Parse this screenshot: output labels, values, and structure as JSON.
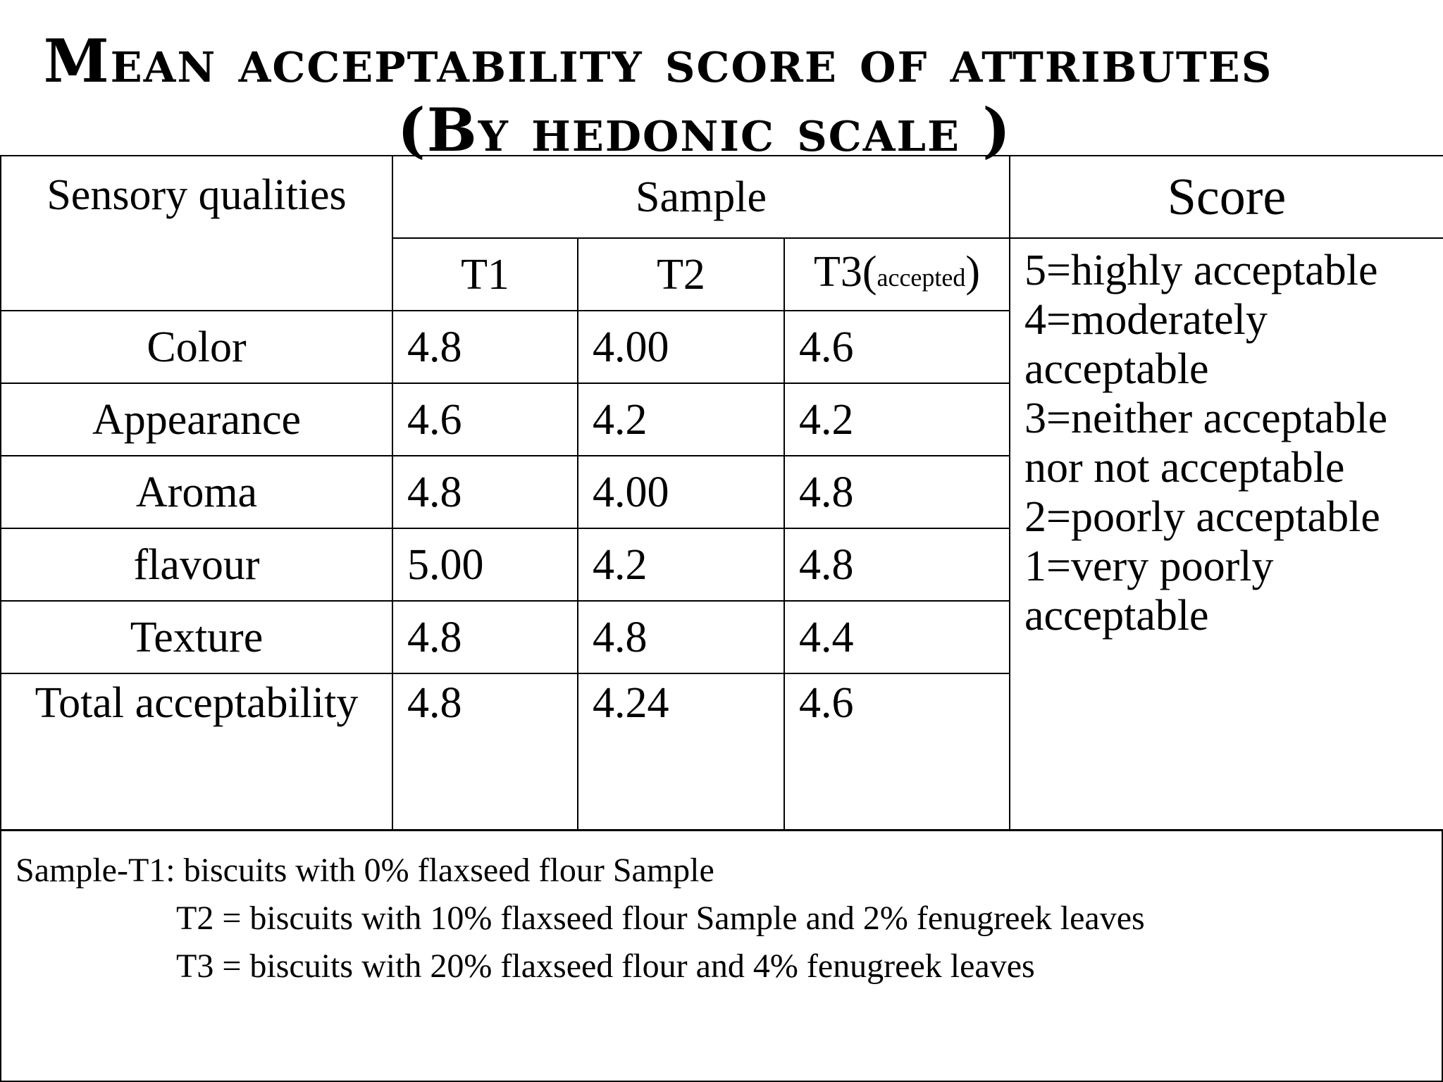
{
  "title": {
    "line1": "Mean acceptability score of attributes",
    "line2": "(By hedonic scale )"
  },
  "table": {
    "header": {
      "sensory_qualities": "Sensory qualities",
      "sample": "Sample",
      "score": "Score"
    },
    "samples": {
      "t1": "T1",
      "t2": "T2",
      "t3": "T3(",
      "t3_note": "accepted",
      "t3_close": ")"
    },
    "rows": [
      {
        "quality": "Color",
        "t1": "4.8",
        "t2": "4.00",
        "t3": "4.6"
      },
      {
        "quality": "Appearance",
        "t1": "4.6",
        "t2": "4.2",
        "t3": "4.2"
      },
      {
        "quality": "Aroma",
        "t1": "4.8",
        "t2": "4.00",
        "t3": "4.8"
      },
      {
        "quality": "flavour",
        "t1": "5.00",
        "t2": "4.2",
        "t3": "4.8"
      },
      {
        "quality": "Texture",
        "t1": "4.8",
        "t2": "4.8",
        "t3": "4.4"
      },
      {
        "quality": "Total acceptability",
        "t1": "4.8",
        "t2": "4.24",
        "t3": "4.6"
      }
    ],
    "score_legend": [
      "5=highly acceptable",
      "4=moderately",
      "acceptable",
      "3=neither acceptable",
      "nor not acceptable",
      "2=poorly acceptable",
      "1=very poorly",
      "acceptable"
    ]
  },
  "footnote": {
    "line1": "Sample-T1: biscuits with 0% flaxseed flour Sample",
    "line2": "T2 = biscuits with 10% flaxseed flour Sample and  2% fenugreek leaves",
    "line3": "T3 = biscuits with 20% flaxseed flour and 4% fenugreek leaves"
  }
}
